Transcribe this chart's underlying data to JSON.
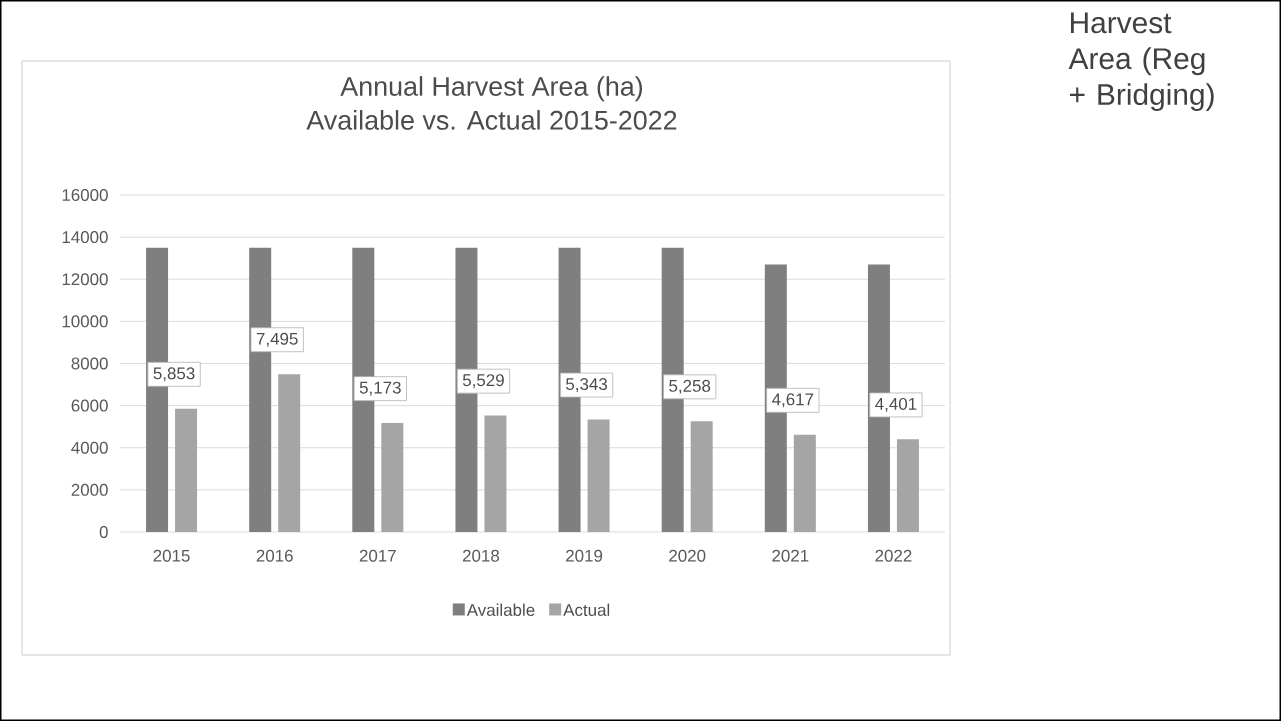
{
  "chart_data": {
    "type": "bar",
    "title": "Annual Harvest Area (ha)",
    "subtitle": "Available vs. Actual  2015-2022",
    "categories": [
      "2015",
      "2016",
      "2017",
      "2018",
      "2019",
      "2020",
      "2021",
      "2022"
    ],
    "series": [
      {
        "name": "Available",
        "color": "#7f7f7f",
        "values": [
          13500,
          13500,
          13500,
          13500,
          13500,
          13500,
          12700,
          12700
        ]
      },
      {
        "name": "Actual",
        "color": "#a5a5a5",
        "values": [
          5853,
          7495,
          5173,
          5529,
          5343,
          5258,
          4617,
          4401
        ],
        "value_labels": [
          "5,853",
          "7,495",
          "5,173",
          "5,529",
          "5,343",
          "5,258",
          "4,617",
          "4,401"
        ]
      }
    ],
    "ylim": [
      0,
      16000
    ],
    "yticks": [
      0,
      2000,
      4000,
      6000,
      8000,
      10000,
      12000,
      14000,
      16000
    ],
    "grid": "y",
    "legend": "bottom",
    "annotations": [
      "Harvest Area (Reg + Bridging)"
    ]
  }
}
